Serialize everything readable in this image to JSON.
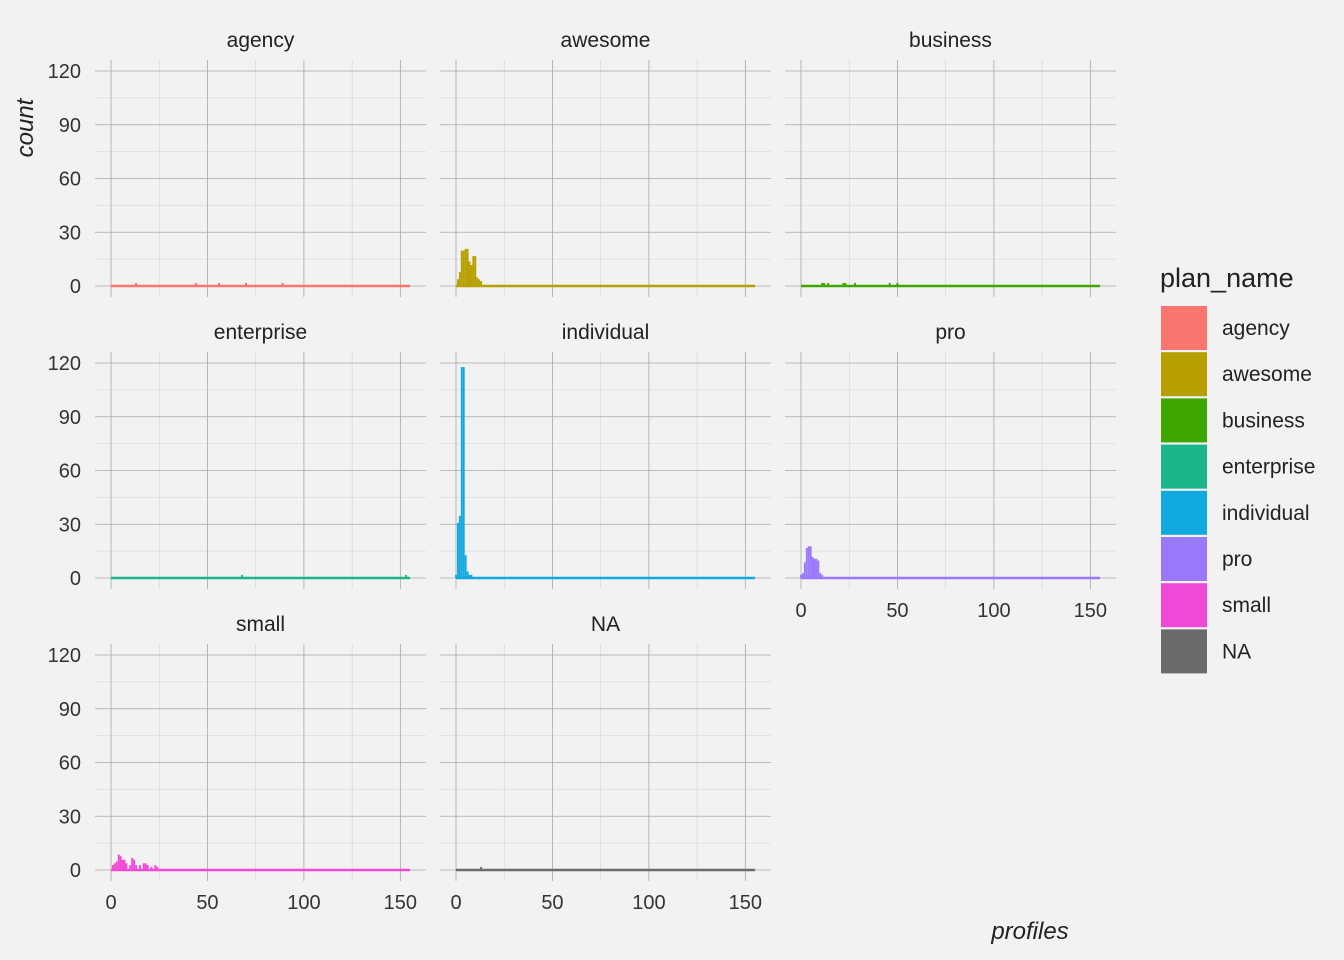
{
  "chart_data": {
    "type": "histogram",
    "facet_by": "plan_name",
    "xlabel": "profiles",
    "ylabel": "count",
    "xlim": [
      0,
      155
    ],
    "ylim": [
      0,
      120
    ],
    "x_ticks": [
      0,
      50,
      100,
      150
    ],
    "y_ticks": [
      0,
      30,
      60,
      90,
      120
    ],
    "legend": {
      "title": "plan_name",
      "position": "right",
      "entries": [
        {
          "label": "agency",
          "color": "#F8766D"
        },
        {
          "label": "awesome",
          "color": "#B79F00"
        },
        {
          "label": "business",
          "color": "#3DA700"
        },
        {
          "label": "enterprise",
          "color": "#1AB58A"
        },
        {
          "label": "individual",
          "color": "#12A9E1"
        },
        {
          "label": "pro",
          "color": "#9A78FB"
        },
        {
          "label": "small",
          "color": "#F248D6"
        },
        {
          "label": "NA",
          "color": "#6B6B6B"
        }
      ]
    },
    "panels": [
      {
        "name": "agency",
        "color": "#F8766D",
        "bins": [
          [
            13,
            1
          ],
          [
            44,
            1
          ],
          [
            56,
            1
          ],
          [
            70,
            1
          ],
          [
            89,
            1
          ]
        ]
      },
      {
        "name": "awesome",
        "color": "#B79F00",
        "bins": [
          [
            1,
            3
          ],
          [
            2,
            7
          ],
          [
            3,
            19
          ],
          [
            4,
            19
          ],
          [
            5,
            20
          ],
          [
            6,
            20
          ],
          [
            7,
            13
          ],
          [
            8,
            11
          ],
          [
            9,
            16
          ],
          [
            10,
            16
          ],
          [
            11,
            4
          ],
          [
            12,
            3
          ],
          [
            13,
            2
          ]
        ]
      },
      {
        "name": "business",
        "color": "#3DA700",
        "bins": [
          [
            11,
            1
          ],
          [
            12,
            1
          ],
          [
            14,
            1
          ],
          [
            22,
            1
          ],
          [
            23,
            1
          ],
          [
            28,
            1
          ],
          [
            46,
            1
          ],
          [
            50,
            1
          ]
        ]
      },
      {
        "name": "enterprise",
        "color": "#1AB58A",
        "bins": [
          [
            68,
            1
          ],
          [
            153,
            1
          ]
        ]
      },
      {
        "name": "individual",
        "color": "#12A9E1",
        "bins": [
          [
            0,
            1
          ],
          [
            1,
            30
          ],
          [
            2,
            34
          ],
          [
            3,
            117
          ],
          [
            4,
            117
          ],
          [
            5,
            12
          ],
          [
            6,
            3
          ],
          [
            7,
            1
          ],
          [
            8,
            1
          ]
        ]
      },
      {
        "name": "pro",
        "color": "#9A78FB",
        "bins": [
          [
            0,
            1
          ],
          [
            1,
            2
          ],
          [
            2,
            8
          ],
          [
            3,
            16
          ],
          [
            4,
            17
          ],
          [
            5,
            17
          ],
          [
            6,
            11
          ],
          [
            7,
            10
          ],
          [
            8,
            10
          ],
          [
            9,
            9
          ],
          [
            10,
            2
          ],
          [
            11,
            1
          ]
        ]
      },
      {
        "name": "small",
        "color": "#F248D6",
        "bins": [
          [
            1,
            2
          ],
          [
            2,
            3
          ],
          [
            3,
            4
          ],
          [
            4,
            8
          ],
          [
            5,
            7
          ],
          [
            6,
            5
          ],
          [
            7,
            5
          ],
          [
            8,
            3
          ],
          [
            10,
            2
          ],
          [
            11,
            6
          ],
          [
            12,
            5
          ],
          [
            13,
            2
          ],
          [
            15,
            2
          ],
          [
            17,
            3
          ],
          [
            18,
            3
          ],
          [
            19,
            2
          ],
          [
            21,
            1
          ],
          [
            23,
            2
          ],
          [
            24,
            1
          ]
        ]
      },
      {
        "name": "NA",
        "color": "#6B6B6B",
        "bins": [
          [
            13,
            1
          ]
        ]
      }
    ]
  }
}
